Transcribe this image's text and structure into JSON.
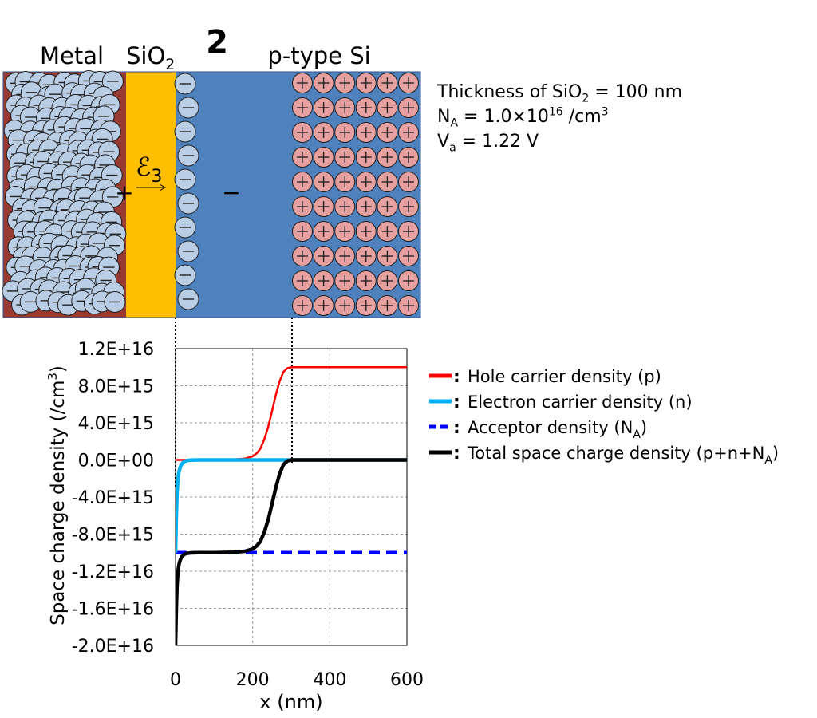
{
  "header": {
    "metal_label": "Metal",
    "oxide_label_main": "SiO",
    "oxide_label_sub": "2",
    "panel_number": "2",
    "semiconductor_label": "p-type Si"
  },
  "device": {
    "field_symbol": "ℰ",
    "field_subscript": "3",
    "plus_sign": "+",
    "minus_sign": "−",
    "colors": {
      "metal": "#973a32",
      "oxide": "#ffbf00",
      "silicon": "#4f81bd",
      "electron": "#b9cde5",
      "hole": "#e6a0a0"
    }
  },
  "params": {
    "thickness_prefix": "Thickness of SiO",
    "thickness_sub": "2",
    "thickness_suffix": " = 100 nm",
    "na_prefix": "N",
    "na_sub": "A",
    "na_mid": " = 1.0×10",
    "na_sup": "16",
    "na_unit": " /cm",
    "na_unit_sup": "3",
    "va_prefix": "V",
    "va_sub": "a",
    "va_suffix": " = 1.22 V"
  },
  "chart_data": {
    "type": "line",
    "xlabel": "x (nm)",
    "ylabel_main": "Space charge density (/cm",
    "ylabel_sup": "3",
    "ylabel_end": ")",
    "xlim": [
      0,
      600
    ],
    "ylim": [
      -2e+16,
      1.2e+16
    ],
    "x_ticks": [
      {
        "value": 0,
        "label": "0"
      },
      {
        "value": 200,
        "label": "200"
      },
      {
        "value": 400,
        "label": "400"
      },
      {
        "value": 600,
        "label": "600"
      }
    ],
    "y_ticks": [
      {
        "value": 1.2e+16,
        "label": "1.2E+16"
      },
      {
        "value": 8000000000000000.0,
        "label": "8.0E+15"
      },
      {
        "value": 4000000000000000.0,
        "label": "4.0E+15"
      },
      {
        "value": 0,
        "label": "0.0E+00"
      },
      {
        "value": -4000000000000000.0,
        "label": "-4.0E+15"
      },
      {
        "value": -8000000000000000.0,
        "label": "-8.0E+15"
      },
      {
        "value": -1.2e+16,
        "label": "-1.2E+16"
      },
      {
        "value": -1.6e+16,
        "label": "-1.6E+16"
      },
      {
        "value": -2e+16,
        "label": "-2.0E+16"
      }
    ],
    "grid": true,
    "legend_position": "right",
    "series": [
      {
        "key": "hole",
        "name": "Hole carrier density (p)",
        "color": "#ff0000",
        "dash": false,
        "x": [
          0,
          50,
          100,
          150,
          180,
          200,
          210,
          220,
          230,
          240,
          250,
          260,
          270,
          280,
          290,
          300,
          400,
          500,
          600
        ],
        "y": [
          0,
          2000000000000.0,
          10000000000000.0,
          50000000000000.0,
          150000000000000.0,
          400000000000000.0,
          700000000000000.0,
          1200000000000000.0,
          2200000000000000.0,
          3500000000000000.0,
          5200000000000000.0,
          7000000000000000.0,
          8500000000000000.0,
          9500000000000000.0,
          9900000000000000.0,
          1e+16,
          1e+16,
          1e+16,
          1e+16
        ]
      },
      {
        "key": "electron",
        "name": "Electron carrier density (n)",
        "color": "#00b0f0",
        "dash": false,
        "x": [
          0,
          2,
          4,
          6,
          8,
          10,
          13,
          16,
          20,
          25,
          30,
          40,
          60,
          100,
          200,
          300,
          400,
          500,
          600
        ],
        "y": [
          -1e+16,
          -6000000000000000.0,
          -3500000000000000.0,
          -2200000000000000.0,
          -1500000000000000.0,
          -1100000000000000.0,
          -700000000000000.0,
          -450000000000000.0,
          -250000000000000.0,
          -130000000000000.0,
          -70000000000000.0,
          -20000000000000.0,
          -4000000000000.0,
          0,
          0,
          0,
          0,
          0,
          0
        ]
      },
      {
        "key": "acceptor",
        "name": "Acceptor density (N",
        "name_sub": "A",
        "name_end": ")",
        "color": "#0000ff",
        "dash": true,
        "x": [
          0,
          600
        ],
        "y": [
          -1e+16,
          -1e+16
        ]
      },
      {
        "key": "total",
        "name": "Total space charge density (p+n+N",
        "name_sub": "A",
        "name_end": ")",
        "color": "#000000",
        "dash": false,
        "x": [
          0,
          2,
          4,
          6,
          8,
          10,
          13,
          16,
          20,
          25,
          30,
          40,
          60,
          100,
          150,
          180,
          200,
          210,
          220,
          230,
          240,
          250,
          260,
          270,
          280,
          290,
          300,
          400,
          500,
          600
        ],
        "y": [
          -2e+16,
          -1.6e+16,
          -1.35e+16,
          -1.22e+16,
          -1.15e+16,
          -1.11e+16,
          -1.07e+16,
          -1.045e+16,
          -1.025e+16,
          -1.013e+16,
          -1.007e+16,
          -1.002e+16,
          -1e+16,
          -1e+16,
          -9950000000000000.0,
          -9850000000000000.0,
          -9600000000000000.0,
          -9300000000000000.0,
          -8800000000000000.0,
          -7800000000000000.0,
          -6500000000000000.0,
          -4800000000000000.0,
          -3000000000000000.0,
          -1500000000000000.0,
          -500000000000000.0,
          -100000000000000.0,
          0,
          0,
          0,
          0
        ]
      }
    ]
  }
}
